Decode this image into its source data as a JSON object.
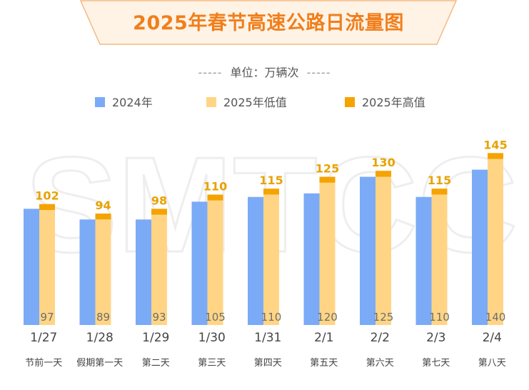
{
  "title": "2025年春节高速公路日流量图",
  "unit": {
    "dashes_left": "-----",
    "label": "单位：万辆次",
    "dashes_right": "-----"
  },
  "watermark": "SMTCC",
  "colors": {
    "title": "#f07f1c",
    "banner_fill": "#fff3e6",
    "banner_stroke": "#f5b981",
    "series_2024": "#7baaf7",
    "series_2025_low": "#ffd585",
    "series_2025_high": "#f5a300",
    "high_label": "#e8a200",
    "low_label": "#6e6e6e"
  },
  "legend": [
    {
      "name": "2024年",
      "color": "#7baaf7"
    },
    {
      "name": "2025年低值",
      "color": "#ffd585"
    },
    {
      "name": "2025年高值",
      "color": "#f5a300"
    }
  ],
  "chart_data": {
    "type": "bar",
    "title": "2025年春节高速公路日流量图",
    "unit": "万辆次",
    "categories": [
      "1/27",
      "1/28",
      "1/29",
      "1/30",
      "1/31",
      "2/1",
      "2/2",
      "2/3",
      "2/4"
    ],
    "sublabels": [
      "节前一天",
      "假期第一天",
      "第二天",
      "第三天",
      "第四天",
      "第五天",
      "第六天",
      "第七天",
      "第八天"
    ],
    "series": [
      {
        "name": "2024年",
        "values": [
          98,
          89,
          89,
          104,
          108,
          111,
          125,
          108,
          131
        ]
      },
      {
        "name": "2025年低值",
        "values": [
          97,
          89,
          93,
          105,
          110,
          120,
          125,
          110,
          140
        ]
      },
      {
        "name": "2025年高值",
        "values": [
          102,
          94,
          98,
          110,
          115,
          125,
          130,
          115,
          145
        ]
      }
    ],
    "ylim": [
      0,
      160
    ],
    "grid": false,
    "legend_position": "top"
  }
}
